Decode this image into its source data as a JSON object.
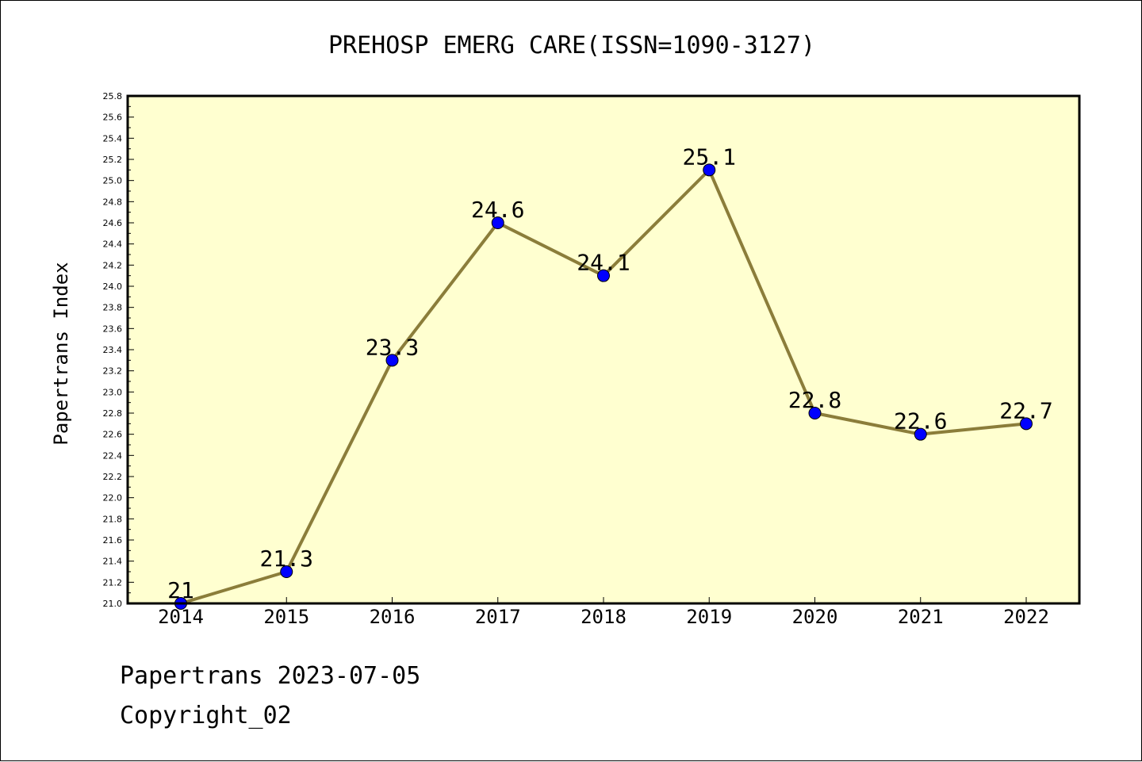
{
  "chart_data": {
    "type": "line",
    "title": "PREHOSP EMERG CARE(ISSN=1090-3127)",
    "ylabel": "Papertrans Index",
    "xlabel": "",
    "categories": [
      "2014",
      "2015",
      "2016",
      "2017",
      "2018",
      "2019",
      "2020",
      "2021",
      "2022"
    ],
    "series": [
      {
        "values": [
          21,
          21.3,
          23.3,
          24.6,
          24.1,
          25.1,
          22.8,
          22.6,
          22.7
        ],
        "labels": [
          "21",
          "21.3",
          "23.3",
          "24.6",
          "24.1",
          "25.1",
          "22.8",
          "22.6",
          "22.7"
        ]
      }
    ],
    "ylim": [
      21.0,
      25.8
    ],
    "yticks": [
      "21.0",
      "21.2",
      "21.4",
      "21.6",
      "21.8",
      "22.0",
      "22.2",
      "22.4",
      "22.6",
      "22.8",
      "23.0",
      "23.2",
      "23.4",
      "23.6",
      "23.8",
      "24.0",
      "24.2",
      "24.4",
      "24.6",
      "24.8",
      "25.0",
      "25.2",
      "25.4",
      "25.6",
      "25.8"
    ],
    "grid": false,
    "legend": "none",
    "colors": {
      "plot_background": "#ffffd0",
      "line": "#8b7d3a",
      "marker": "#0000ff",
      "axis": "#000000"
    }
  },
  "footer": {
    "date_text": "Papertrans 2023-07-05",
    "copyright_text": "Copyright_02"
  }
}
